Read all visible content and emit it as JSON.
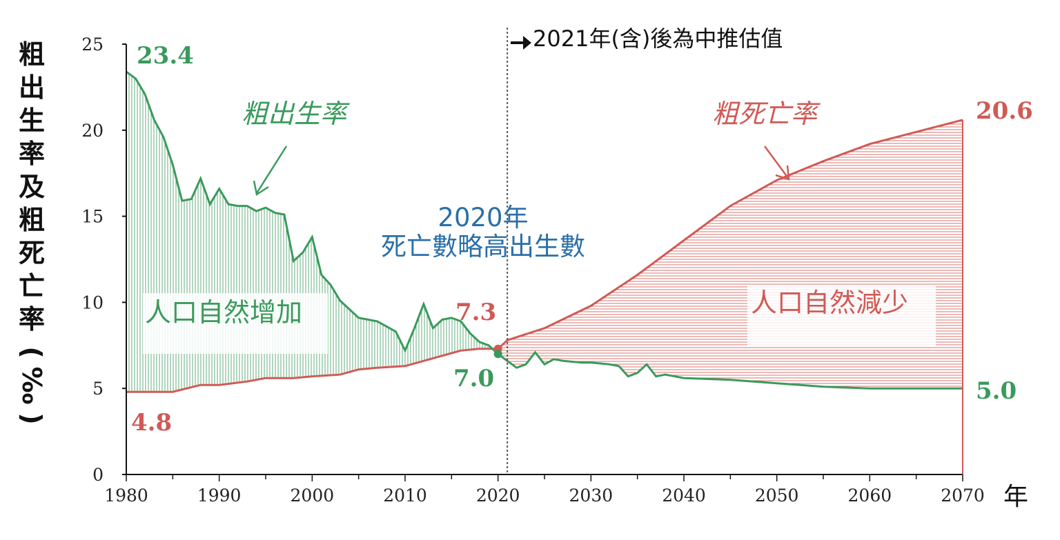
{
  "chart_data": {
    "type": "area",
    "ylabel": "粗出生率及粗死亡率(‰)",
    "xlabel_unit": "年",
    "ylim": [
      0,
      25
    ],
    "xlim": [
      1980,
      2070
    ],
    "yticks": [
      0,
      5,
      10,
      15,
      20,
      25
    ],
    "xticks": [
      1980,
      1990,
      2000,
      2010,
      2020,
      2030,
      2040,
      2050,
      2060,
      2070
    ],
    "projection_start_note": "2021年(含)後為中推估值",
    "projection_start_year": 2021,
    "series": [
      {
        "name": "粗出生率",
        "color": "#3a9a5c",
        "x": [
          1980,
          1981,
          1982,
          1983,
          1984,
          1985,
          1986,
          1987,
          1988,
          1989,
          1990,
          1991,
          1992,
          1993,
          1994,
          1995,
          1996,
          1997,
          1998,
          1999,
          2000,
          2001,
          2002,
          2003,
          2004,
          2005,
          2006,
          2007,
          2008,
          2009,
          2010,
          2011,
          2012,
          2013,
          2014,
          2015,
          2016,
          2017,
          2018,
          2019,
          2020,
          2021,
          2022,
          2023,
          2024,
          2025,
          2026,
          2027,
          2028,
          2029,
          2030,
          2031,
          2032,
          2033,
          2034,
          2035,
          2036,
          2037,
          2038,
          2039,
          2040,
          2045,
          2050,
          2055,
          2060,
          2065,
          2070
        ],
        "y": [
          23.4,
          23.0,
          22.1,
          20.6,
          19.6,
          18.0,
          15.9,
          16.0,
          17.2,
          15.7,
          16.6,
          15.7,
          15.6,
          15.6,
          15.3,
          15.5,
          15.2,
          15.1,
          12.4,
          12.9,
          13.8,
          11.6,
          11.0,
          10.1,
          9.6,
          9.1,
          9.0,
          8.9,
          8.6,
          8.3,
          7.2,
          8.5,
          9.9,
          8.5,
          9.0,
          9.1,
          8.9,
          8.2,
          7.7,
          7.5,
          7.0,
          6.6,
          6.2,
          6.4,
          7.1,
          6.4,
          6.7,
          6.6,
          6.55,
          6.5,
          6.5,
          6.45,
          6.4,
          6.3,
          5.7,
          5.9,
          6.4,
          5.7,
          5.8,
          5.7,
          5.6,
          5.5,
          5.3,
          5.1,
          5.0,
          5.0,
          5.0
        ]
      },
      {
        "name": "粗死亡率",
        "color": "#d05a55",
        "x": [
          1980,
          1983,
          1985,
          1988,
          1990,
          1993,
          1995,
          1998,
          2000,
          2003,
          2005,
          2007,
          2010,
          2012,
          2014,
          2016,
          2018,
          2019,
          2020,
          2021,
          2025,
          2030,
          2035,
          2040,
          2045,
          2050,
          2055,
          2060,
          2065,
          2070
        ],
        "y": [
          4.8,
          4.8,
          4.8,
          5.2,
          5.2,
          5.4,
          5.6,
          5.6,
          5.7,
          5.8,
          6.1,
          6.2,
          6.3,
          6.6,
          6.9,
          7.2,
          7.3,
          7.3,
          7.3,
          7.8,
          8.5,
          9.8,
          11.6,
          13.6,
          15.6,
          17.1,
          18.2,
          19.2,
          19.9,
          20.6
        ]
      }
    ],
    "labels": {
      "birth_start": "23.4",
      "death_start": "4.8",
      "death_2020": "7.3",
      "birth_2020": "7.0",
      "birth_end": "5.0",
      "death_end": "20.6",
      "birth_series": "粗出生率",
      "death_series": "粗死亡率",
      "increase_region": "人口自然增加",
      "decrease_region": "人口自然減少",
      "annot_2020_line1": "2020年",
      "annot_2020_line2": "死亡數略高出生數"
    }
  }
}
